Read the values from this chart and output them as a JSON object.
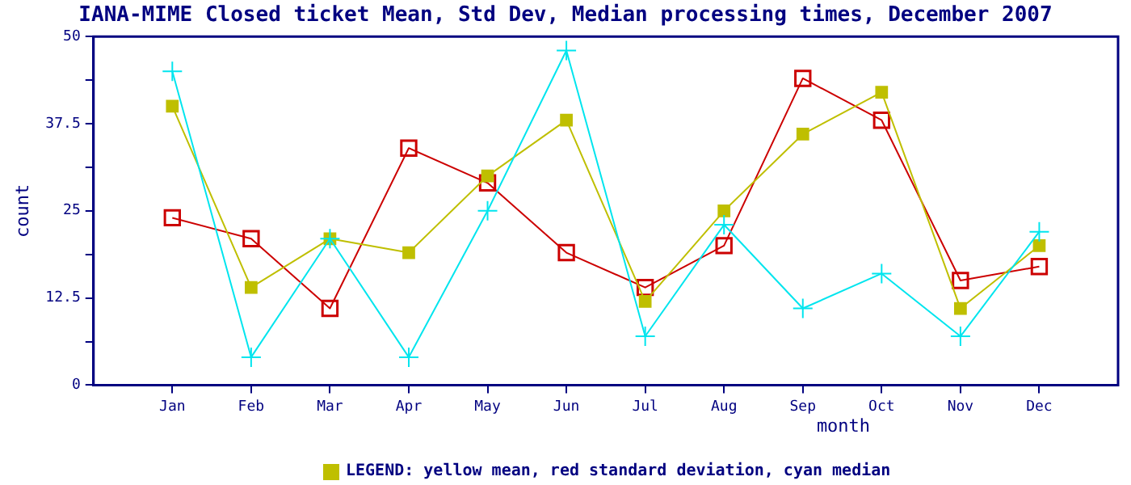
{
  "chart_data": {
    "type": "line",
    "title": "IANA-MIME Closed ticket Mean, Std Dev, Median processing times, December 2007",
    "xlabel": "month",
    "ylabel": "count",
    "categories": [
      "Jan",
      "Feb",
      "Mar",
      "Apr",
      "May",
      "Jun",
      "Jul",
      "Aug",
      "Sep",
      "Oct",
      "Nov",
      "Dec"
    ],
    "series": [
      {
        "color": "#bfbf00",
        "marker": "square",
        "values": [
          40,
          14,
          21,
          19,
          30,
          38,
          12,
          25,
          36,
          42,
          11,
          20
        ]
      },
      {
        "color": "#cc0000",
        "marker": "square",
        "values": [
          24,
          21,
          11,
          34,
          29,
          19,
          14,
          20,
          44,
          38,
          15,
          17
        ]
      },
      {
        "color": "#00e5ee",
        "marker": "cross",
        "values": [
          45,
          4,
          21,
          4,
          25,
          48,
          7,
          23,
          11,
          16,
          7,
          22
        ]
      }
    ],
    "ylim": [
      0,
      50
    ],
    "yticks": [
      0,
      {
        "value": 6.25,
        "label": null
      },
      12.5,
      {
        "value": 18.75,
        "label": null
      },
      25,
      {
        "value": 31.25,
        "label": null
      },
      37.5,
      {
        "value": 43.75,
        "label": null
      },
      50
    ],
    "grid": false,
    "legend": false,
    "annotations": [
      "LEGEND: yellow mean, red standard deviation, cyan median"
    ]
  }
}
